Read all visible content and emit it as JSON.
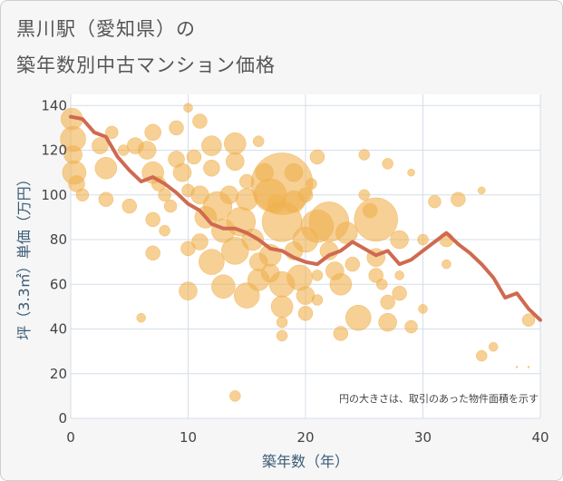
{
  "header": {
    "title_line1": "黒川駅（愛知県）の",
    "title_line2": "築年数別中古マンション価格"
  },
  "chart_data": {
    "type": "scatter",
    "xlabel": "築年数（年）",
    "ylabel": "坪（3.3㎡）単価（万円）",
    "xlim": [
      0,
      40
    ],
    "ylim": [
      0,
      145
    ],
    "xticks": [
      0,
      10,
      20,
      30,
      40
    ],
    "yticks": [
      0,
      20,
      40,
      60,
      80,
      100,
      120,
      140
    ],
    "grid": true,
    "note": "円の大きさは、取引のあった物件面積を示す",
    "bubble_color": "#f0b04e",
    "line_color": "#cf6a50",
    "bubbles": [
      {
        "x": 0.1,
        "y": 134,
        "s": 12
      },
      {
        "x": 0.2,
        "y": 125,
        "s": 14
      },
      {
        "x": 0.3,
        "y": 110,
        "s": 13
      },
      {
        "x": 0.2,
        "y": 118,
        "s": 10
      },
      {
        "x": 0.5,
        "y": 105,
        "s": 9
      },
      {
        "x": 10,
        "y": 139,
        "s": 5
      },
      {
        "x": 1,
        "y": 100,
        "s": 7
      },
      {
        "x": 2.5,
        "y": 122,
        "s": 9
      },
      {
        "x": 3,
        "y": 112,
        "s": 12
      },
      {
        "x": 3,
        "y": 98,
        "s": 8
      },
      {
        "x": 3.5,
        "y": 128,
        "s": 7
      },
      {
        "x": 4.5,
        "y": 120,
        "s": 6
      },
      {
        "x": 5,
        "y": 95,
        "s": 8
      },
      {
        "x": 5.5,
        "y": 122,
        "s": 9
      },
      {
        "x": 6,
        "y": 45,
        "s": 5
      },
      {
        "x": 6.5,
        "y": 120,
        "s": 10
      },
      {
        "x": 7,
        "y": 128,
        "s": 9
      },
      {
        "x": 7,
        "y": 110,
        "s": 12
      },
      {
        "x": 7,
        "y": 89,
        "s": 8
      },
      {
        "x": 7,
        "y": 74,
        "s": 8
      },
      {
        "x": 7.5,
        "y": 105,
        "s": 8
      },
      {
        "x": 8,
        "y": 100,
        "s": 7
      },
      {
        "x": 8,
        "y": 84,
        "s": 6
      },
      {
        "x": 8.5,
        "y": 95,
        "s": 7
      },
      {
        "x": 9,
        "y": 130,
        "s": 8
      },
      {
        "x": 9,
        "y": 116,
        "s": 9
      },
      {
        "x": 9.5,
        "y": 110,
        "s": 10
      },
      {
        "x": 10,
        "y": 102,
        "s": 7
      },
      {
        "x": 10,
        "y": 76,
        "s": 8
      },
      {
        "x": 10,
        "y": 57,
        "s": 10
      },
      {
        "x": 10.5,
        "y": 117,
        "s": 8
      },
      {
        "x": 11,
        "y": 133,
        "s": 8
      },
      {
        "x": 11,
        "y": 100,
        "s": 10
      },
      {
        "x": 11,
        "y": 79,
        "s": 9
      },
      {
        "x": 11.5,
        "y": 90,
        "s": 12
      },
      {
        "x": 12,
        "y": 122,
        "s": 11
      },
      {
        "x": 12,
        "y": 112,
        "s": 9
      },
      {
        "x": 12,
        "y": 70,
        "s": 14
      },
      {
        "x": 12.5,
        "y": 95,
        "s": 16
      },
      {
        "x": 13,
        "y": 84,
        "s": 13
      },
      {
        "x": 13,
        "y": 59,
        "s": 13
      },
      {
        "x": 13.5,
        "y": 100,
        "s": 10
      },
      {
        "x": 14,
        "y": 123,
        "s": 12
      },
      {
        "x": 14,
        "y": 115,
        "s": 10
      },
      {
        "x": 14,
        "y": 75,
        "s": 15
      },
      {
        "x": 14,
        "y": 10,
        "s": 6
      },
      {
        "x": 14.5,
        "y": 88,
        "s": 16
      },
      {
        "x": 15,
        "y": 106,
        "s": 8
      },
      {
        "x": 15,
        "y": 98,
        "s": 12
      },
      {
        "x": 15,
        "y": 55,
        "s": 14
      },
      {
        "x": 15.5,
        "y": 80,
        "s": 12
      },
      {
        "x": 16,
        "y": 124,
        "s": 6
      },
      {
        "x": 16,
        "y": 70,
        "s": 10
      },
      {
        "x": 16,
        "y": 62,
        "s": 12
      },
      {
        "x": 16.5,
        "y": 110,
        "s": 10
      },
      {
        "x": 17,
        "y": 100,
        "s": 18
      },
      {
        "x": 17,
        "y": 73,
        "s": 12
      },
      {
        "x": 17,
        "y": 65,
        "s": 10
      },
      {
        "x": 17.5,
        "y": 96,
        "s": 10
      },
      {
        "x": 18,
        "y": 105,
        "s": 34
      },
      {
        "x": 18,
        "y": 88,
        "s": 22
      },
      {
        "x": 18,
        "y": 60,
        "s": 14
      },
      {
        "x": 18,
        "y": 50,
        "s": 12
      },
      {
        "x": 18,
        "y": 43,
        "s": 6
      },
      {
        "x": 18,
        "y": 37,
        "s": 6
      },
      {
        "x": 19,
        "y": 110,
        "s": 10
      },
      {
        "x": 19,
        "y": 97,
        "s": 12
      },
      {
        "x": 19,
        "y": 75,
        "s": 10
      },
      {
        "x": 19.5,
        "y": 63,
        "s": 14
      },
      {
        "x": 20,
        "y": 100,
        "s": 8
      },
      {
        "x": 20,
        "y": 80,
        "s": 14
      },
      {
        "x": 20,
        "y": 55,
        "s": 10
      },
      {
        "x": 20,
        "y": 47,
        "s": 8
      },
      {
        "x": 20.5,
        "y": 105,
        "s": 6
      },
      {
        "x": 21,
        "y": 117,
        "s": 8
      },
      {
        "x": 21,
        "y": 86,
        "s": 18
      },
      {
        "x": 21,
        "y": 64,
        "s": 6
      },
      {
        "x": 21,
        "y": 53,
        "s": 6
      },
      {
        "x": 22,
        "y": 88,
        "s": 22
      },
      {
        "x": 22,
        "y": 75,
        "s": 10
      },
      {
        "x": 22.5,
        "y": 66,
        "s": 10
      },
      {
        "x": 23,
        "y": 60,
        "s": 12
      },
      {
        "x": 23,
        "y": 38,
        "s": 8
      },
      {
        "x": 23.5,
        "y": 83,
        "s": 12
      },
      {
        "x": 24,
        "y": 69,
        "s": 8
      },
      {
        "x": 24.5,
        "y": 45,
        "s": 14
      },
      {
        "x": 25,
        "y": 118,
        "s": 6
      },
      {
        "x": 25,
        "y": 100,
        "s": 6
      },
      {
        "x": 25.5,
        "y": 93,
        "s": 8
      },
      {
        "x": 26,
        "y": 89,
        "s": 24
      },
      {
        "x": 26,
        "y": 72,
        "s": 10
      },
      {
        "x": 26,
        "y": 64,
        "s": 8
      },
      {
        "x": 26.5,
        "y": 60,
        "s": 6
      },
      {
        "x": 27,
        "y": 114,
        "s": 6
      },
      {
        "x": 27,
        "y": 52,
        "s": 8
      },
      {
        "x": 27,
        "y": 43,
        "s": 10
      },
      {
        "x": 28,
        "y": 80,
        "s": 10
      },
      {
        "x": 28,
        "y": 56,
        "s": 8
      },
      {
        "x": 28,
        "y": 64,
        "s": 5
      },
      {
        "x": 29,
        "y": 110,
        "s": 4
      },
      {
        "x": 29,
        "y": 41,
        "s": 7
      },
      {
        "x": 30,
        "y": 49,
        "s": 5
      },
      {
        "x": 30,
        "y": 80,
        "s": 6
      },
      {
        "x": 31,
        "y": 97,
        "s": 7
      },
      {
        "x": 32,
        "y": 80,
        "s": 8
      },
      {
        "x": 32,
        "y": 69,
        "s": 5
      },
      {
        "x": 33,
        "y": 98,
        "s": 8
      },
      {
        "x": 35,
        "y": 102,
        "s": 4
      },
      {
        "x": 36,
        "y": 32,
        "s": 5
      },
      {
        "x": 35,
        "y": 28,
        "s": 6
      },
      {
        "x": 38,
        "y": 23,
        "s": 1
      },
      {
        "x": 39,
        "y": 23,
        "s": 1
      },
      {
        "x": 39,
        "y": 44,
        "s": 7
      }
    ],
    "series": [
      {
        "x": [
          0,
          1,
          2,
          3,
          4,
          5,
          6,
          7,
          8,
          9,
          10,
          11,
          12,
          13,
          14,
          15,
          16,
          17,
          18,
          19,
          20,
          21,
          22,
          23,
          24,
          25,
          26,
          27,
          28,
          29,
          30,
          31,
          32,
          33,
          34,
          35,
          36,
          37,
          38,
          39,
          40
        ],
        "values": [
          135,
          134,
          128,
          126,
          117,
          111,
          106,
          108,
          105,
          101,
          96,
          93,
          87,
          85,
          85,
          83,
          80,
          76,
          75,
          72,
          70,
          69,
          73,
          75,
          79,
          76,
          73,
          75,
          69,
          71,
          75,
          79,
          83,
          78,
          74,
          69,
          63,
          54,
          56,
          49,
          44
        ]
      }
    ]
  }
}
